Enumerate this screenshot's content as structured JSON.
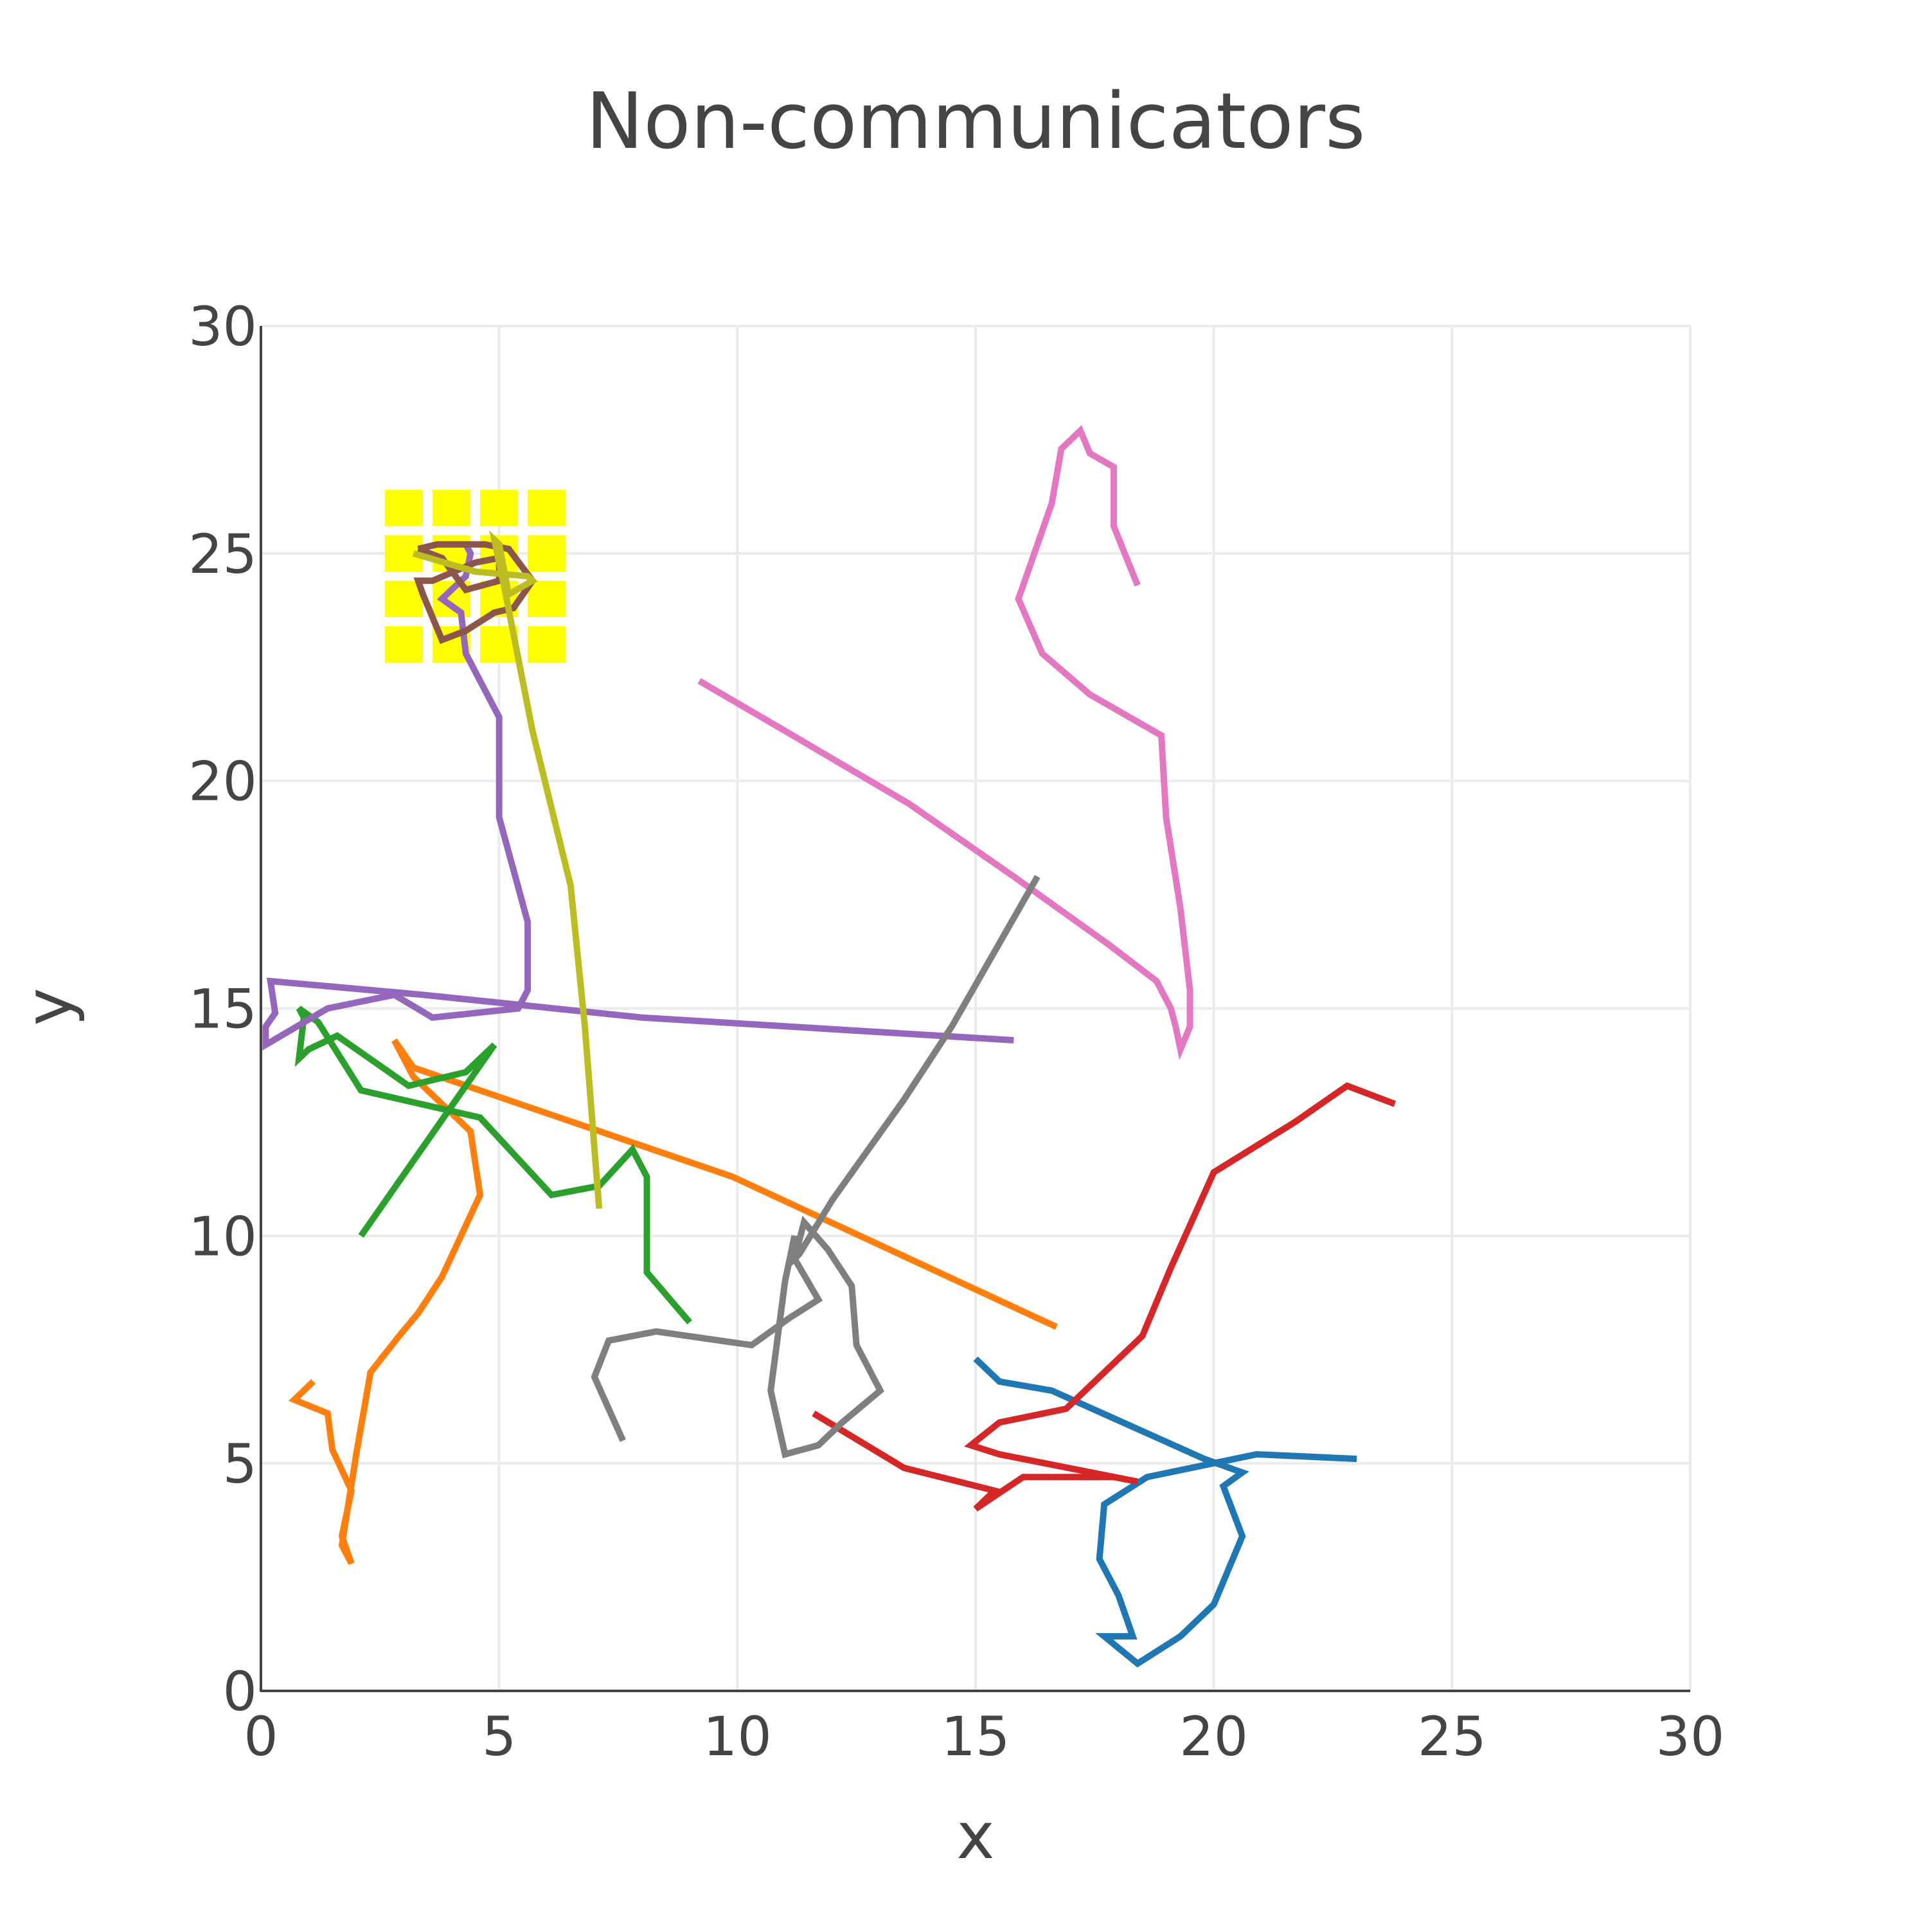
{
  "chart_data": {
    "type": "line",
    "title": "Non-communicators",
    "xlabel": "x",
    "ylabel": "y",
    "xlim": [
      0,
      30
    ],
    "ylim": [
      0,
      30
    ],
    "xticks": [
      0,
      5,
      10,
      15,
      20,
      25,
      30
    ],
    "yticks": [
      0,
      5,
      10,
      15,
      20,
      25,
      30
    ],
    "grid": true,
    "legend": "none",
    "target_region": {
      "color": "#ffff00",
      "columns": [
        3,
        4,
        5,
        6
      ],
      "rows": [
        23,
        24,
        25,
        26
      ],
      "cell_size": 0.8
    },
    "series": [
      {
        "color": "#1f77b4",
        "points": [
          [
            15,
            7.3
          ],
          [
            15.5,
            6.8
          ],
          [
            16.6,
            6.6
          ],
          [
            19.8,
            5.1
          ],
          [
            20.6,
            4.8
          ],
          [
            20.2,
            4.5
          ],
          [
            20.6,
            3.4
          ],
          [
            20,
            1.9
          ],
          [
            19.3,
            1.2
          ],
          [
            18.4,
            0.6
          ],
          [
            17.7,
            1.2
          ],
          [
            18.3,
            1.2
          ],
          [
            18,
            2.1
          ],
          [
            17.6,
            2.9
          ],
          [
            17.7,
            4.1
          ],
          [
            18.6,
            4.7
          ],
          [
            20.9,
            5.2
          ],
          [
            23,
            5.1
          ]
        ]
      },
      {
        "color": "#ff7f0e",
        "points": [
          [
            1.1,
            6.8
          ],
          [
            0.7,
            6.4
          ],
          [
            1.4,
            6.1
          ],
          [
            1.5,
            5.3
          ],
          [
            1.9,
            4.4
          ],
          [
            1.7,
            3.4
          ],
          [
            1.9,
            2.8
          ],
          [
            1.7,
            3.2
          ],
          [
            2,
            5.2
          ],
          [
            2.3,
            7
          ],
          [
            2.9,
            7.8
          ],
          [
            3.3,
            8.3
          ],
          [
            3.8,
            9.1
          ],
          [
            4.6,
            10.9
          ],
          [
            4.4,
            12.3
          ],
          [
            3.2,
            13.5
          ],
          [
            2.8,
            14.3
          ],
          [
            3.2,
            13.7
          ],
          [
            9.9,
            11.3
          ],
          [
            16.7,
            8
          ]
        ]
      },
      {
        "color": "#2ca02c",
        "points": [
          [
            2.1,
            10
          ],
          [
            3.5,
            12.1
          ],
          [
            4.9,
            14.2
          ],
          [
            4.3,
            13.6
          ],
          [
            3.1,
            13.3
          ],
          [
            1.6,
            14.4
          ],
          [
            1,
            14.1
          ],
          [
            0.8,
            13.9
          ],
          [
            0.9,
            14.8
          ],
          [
            0.8,
            15
          ],
          [
            1.2,
            14.7
          ],
          [
            2.1,
            13.2
          ],
          [
            4.6,
            12.6
          ],
          [
            6.1,
            10.9
          ],
          [
            7.1,
            11.1
          ],
          [
            7.8,
            11.9
          ],
          [
            8.1,
            11.3
          ],
          [
            8.1,
            9.2
          ],
          [
            9,
            8.1
          ]
        ]
      },
      {
        "color": "#d62728",
        "points": [
          [
            11.6,
            6.1
          ],
          [
            13.5,
            4.9
          ],
          [
            15.4,
            4.4
          ],
          [
            15,
            4
          ],
          [
            16,
            4.7
          ],
          [
            17.9,
            4.7
          ],
          [
            18.4,
            4.6
          ],
          [
            15.5,
            5.2
          ],
          [
            14.9,
            5.4
          ],
          [
            15.5,
            5.9
          ],
          [
            16.9,
            6.2
          ],
          [
            18.5,
            7.8
          ],
          [
            19.1,
            9.3
          ],
          [
            20,
            11.4
          ],
          [
            21.7,
            12.5
          ],
          [
            22.8,
            13.3
          ],
          [
            23.8,
            12.9
          ]
        ]
      },
      {
        "color": "#9467bd",
        "points": [
          [
            15.8,
            14.3
          ],
          [
            8,
            14.8
          ],
          [
            3.4,
            15.3
          ],
          [
            0.2,
            15.6
          ],
          [
            0.3,
            14.9
          ],
          [
            0.1,
            14.6
          ],
          [
            0.1,
            14.2
          ],
          [
            1.4,
            15
          ],
          [
            2.8,
            15.3
          ],
          [
            3.6,
            14.8
          ],
          [
            5.4,
            15
          ],
          [
            5.6,
            15.4
          ],
          [
            5.6,
            16.9
          ],
          [
            5,
            19.2
          ],
          [
            5,
            21.4
          ],
          [
            4.3,
            22.8
          ],
          [
            4.2,
            23.7
          ],
          [
            3.8,
            24
          ],
          [
            4.3,
            24.5
          ],
          [
            4.4,
            25
          ],
          [
            4.3,
            25.2
          ]
        ]
      },
      {
        "color": "#8c564b",
        "points": [
          [
            3.3,
            25.1
          ],
          [
            3.7,
            25.2
          ],
          [
            4.7,
            25.2
          ],
          [
            5.2,
            25.1
          ],
          [
            5.7,
            24.4
          ],
          [
            5.3,
            23.8
          ],
          [
            4.9,
            23.7
          ],
          [
            4.3,
            23.3
          ],
          [
            3.8,
            23.1
          ],
          [
            3.4,
            24.1
          ],
          [
            3.3,
            24.4
          ],
          [
            3.6,
            24.4
          ],
          [
            4.5,
            24.8
          ],
          [
            5,
            24.9
          ],
          [
            5,
            24.4
          ],
          [
            4.3,
            24.2
          ],
          [
            3.8,
            24.9
          ],
          [
            3.3,
            25.1
          ]
        ]
      },
      {
        "color": "#e377c2",
        "points": [
          [
            9.2,
            22.2
          ],
          [
            11,
            21.1
          ],
          [
            13.6,
            19.5
          ],
          [
            15.8,
            17.9
          ],
          [
            17.8,
            16.4
          ],
          [
            18.8,
            15.6
          ],
          [
            19.1,
            15
          ],
          [
            19.2,
            14.6
          ],
          [
            19.3,
            14.1
          ],
          [
            19.5,
            14.6
          ],
          [
            19.5,
            15.4
          ],
          [
            19.3,
            17.2
          ],
          [
            19,
            19.2
          ],
          [
            18.9,
            21
          ],
          [
            17.4,
            21.9
          ],
          [
            16.4,
            22.8
          ],
          [
            15.9,
            24
          ],
          [
            16.6,
            26.1
          ],
          [
            16.8,
            27.3
          ],
          [
            17.2,
            27.7
          ],
          [
            17.4,
            27.2
          ],
          [
            17.9,
            26.9
          ],
          [
            17.9,
            25.6
          ],
          [
            18.4,
            24.3
          ]
        ]
      },
      {
        "color": "#7f7f7f",
        "points": [
          [
            16.3,
            17.9
          ],
          [
            14.5,
            14.6
          ],
          [
            13.5,
            13
          ],
          [
            12,
            10.8
          ],
          [
            11.3,
            9.6
          ],
          [
            11.2,
            9.5
          ],
          [
            11.4,
            10.3
          ],
          [
            11.9,
            9.7
          ],
          [
            12.4,
            8.9
          ],
          [
            12.5,
            7.6
          ],
          [
            13,
            6.6
          ],
          [
            12.2,
            5.9
          ],
          [
            11.7,
            5.4
          ],
          [
            11,
            5.2
          ],
          [
            10.7,
            6.6
          ],
          [
            11,
            9
          ],
          [
            11.2,
            10
          ],
          [
            11.2,
            9.5
          ],
          [
            11.7,
            8.6
          ],
          [
            11.1,
            8.2
          ],
          [
            10.3,
            7.6
          ],
          [
            8.3,
            7.9
          ],
          [
            7.3,
            7.7
          ],
          [
            7,
            6.9
          ],
          [
            7.6,
            5.5
          ]
        ]
      },
      {
        "color": "#bcbd22",
        "points": [
          [
            7.1,
            10.6
          ],
          [
            6.8,
            14.6
          ],
          [
            6.5,
            17.7
          ],
          [
            5.7,
            21.1
          ],
          [
            5.1,
            24.3
          ],
          [
            4.9,
            25.3
          ],
          [
            5,
            25.2
          ],
          [
            5.2,
            24.1
          ],
          [
            5.7,
            24.4
          ],
          [
            5.6,
            24.5
          ],
          [
            4.5,
            24.6
          ],
          [
            3.2,
            25
          ]
        ]
      }
    ]
  }
}
